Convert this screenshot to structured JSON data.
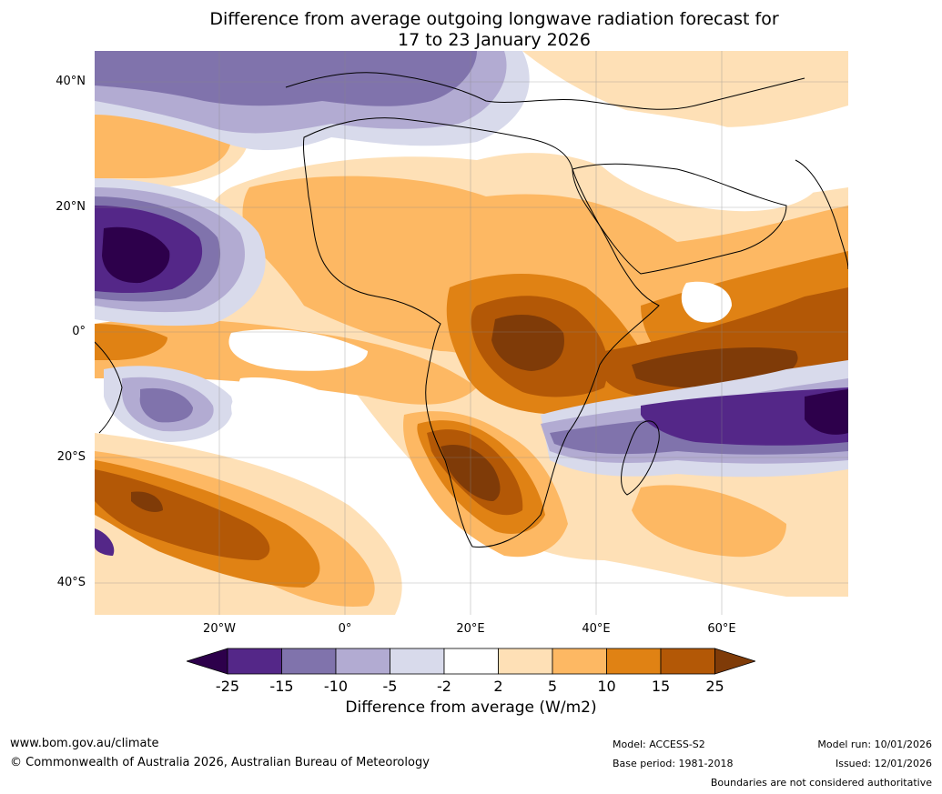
{
  "title": {
    "line1": "Difference from average outgoing longwave radiation forecast for",
    "line2": "17 to 23 January 2026"
  },
  "map": {
    "region": "Africa and surrounding oceans",
    "lat_labels": [
      "40°N",
      "20°N",
      "0°",
      "20°S",
      "40°S"
    ],
    "lon_labels": [
      "20°W",
      "0°",
      "20°E",
      "40°E",
      "60°E"
    ]
  },
  "colorbar": {
    "ticks": [
      "-25",
      "-15",
      "-10",
      "-5",
      "-2",
      "2",
      "5",
      "10",
      "15",
      "25"
    ],
    "label": "Difference from average (W/m2)",
    "colors": {
      "lt_-25": "#2d004b",
      "-25_-15": "#542788",
      "-15_-10": "#8073ac",
      "-10_-5": "#b2abd2",
      "-5_-2": "#d8daeb",
      "-2_2": "#ffffff",
      "2_5": "#fee0b6",
      "5_10": "#fdb863",
      "10_15": "#e08214",
      "15_25": "#b35806",
      "gt_25": "#7f3b08"
    }
  },
  "footer": {
    "website": "www.bom.gov.au/climate",
    "copyright": "© Commonwealth of Australia 2026, Australian Bureau of Meteorology",
    "model": "Model: ACCESS-S2",
    "base_period": "Base period: 1981-2018",
    "model_run": "Model run: 10/01/2026",
    "issued": "Issued: 12/01/2026",
    "disclaimer": "Boundaries are not considered authoritative"
  }
}
